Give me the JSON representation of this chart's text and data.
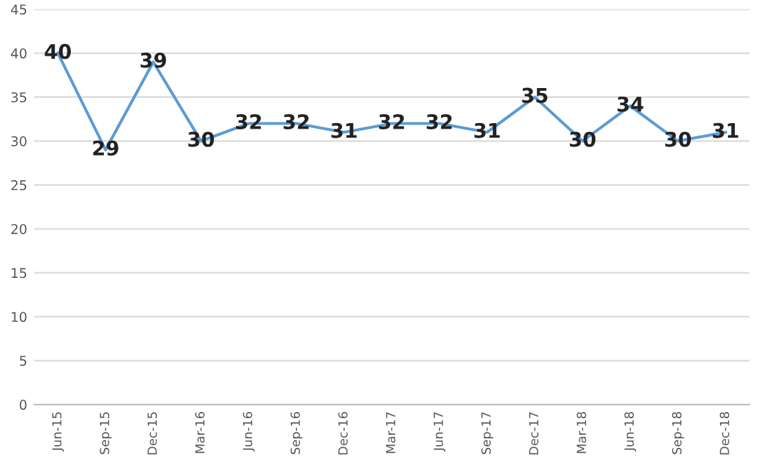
{
  "chart_data": {
    "type": "line",
    "categories": [
      "Jun-15",
      "Sep-15",
      "Dec-15",
      "Mar-16",
      "Jun-16",
      "Sep-16",
      "Dec-16",
      "Mar-17",
      "Jun-17",
      "Sep-17",
      "Dec-17",
      "Mar-18",
      "Jun-18",
      "Sep-18",
      "Dec-18"
    ],
    "series": [
      {
        "color": "#5b9bd5",
        "values": [
          40,
          29,
          39,
          30,
          32,
          32,
          31,
          32,
          32,
          31,
          35,
          30,
          34,
          30,
          31
        ]
      }
    ],
    "ylim": [
      0,
      45
    ],
    "yticks": [
      0,
      5,
      10,
      15,
      20,
      25,
      30,
      35,
      40,
      45
    ],
    "grid": "y",
    "data_labels": true,
    "marker": "none",
    "line_style": "solid"
  }
}
